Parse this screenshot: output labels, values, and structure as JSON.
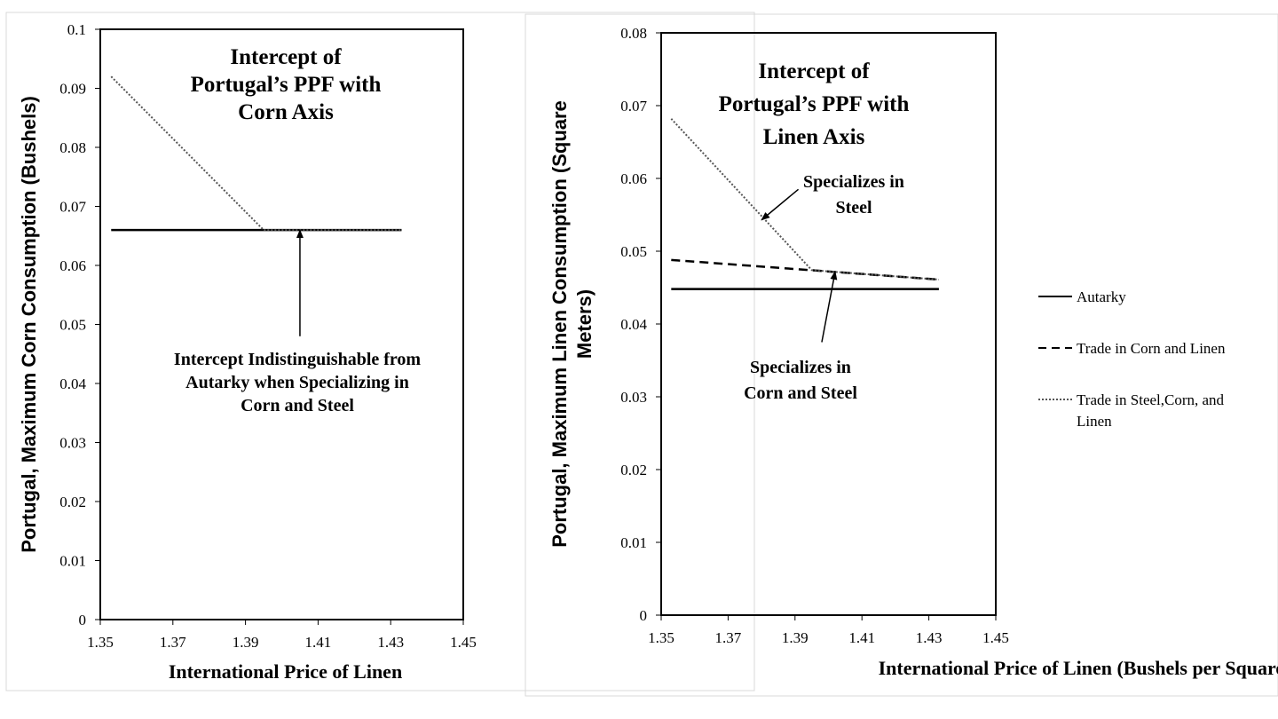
{
  "chart_data": [
    {
      "type": "line",
      "title": "Intercept of Portugal’s PPF with Corn Axis",
      "title_lines": [
        "Intercept of",
        "Portugal’s PPF with",
        "Corn Axis"
      ],
      "xlabel": "International Price of Linen",
      "ylabel": "Portugal, Maximum Corn Consumption (Bushels)",
      "xlim": [
        1.35,
        1.45
      ],
      "ylim": [
        0,
        0.1
      ],
      "x_ticks": [
        "1.35",
        "1.37",
        "1.39",
        "1.41",
        "1.43",
        "1.45"
      ],
      "y_ticks": [
        "0",
        "0.01",
        "0.02",
        "0.03",
        "0.04",
        "0.05",
        "0.06",
        "0.07",
        "0.08",
        "0.09",
        "0.1"
      ],
      "grid": false,
      "series": [
        {
          "name": "Autarky",
          "style": "solid",
          "x": [
            1.353,
            1.433
          ],
          "y": [
            0.066,
            0.066
          ]
        },
        {
          "name": "Trade in Steel,Corn, and Linen",
          "style": "dotted",
          "x": [
            1.353,
            1.395,
            1.433
          ],
          "y": [
            0.092,
            0.066,
            0.066
          ]
        }
      ],
      "annotations": [
        {
          "lines": [
            "Intercept Indistinguishable from",
            "Autarky when Specializing in",
            "Corn and Steel"
          ],
          "arrow_from": [
            1.405,
            0.048
          ],
          "arrow_to": [
            1.405,
            0.066
          ]
        }
      ]
    },
    {
      "type": "line",
      "title": "Intercept of Portugal’s PPF with Linen Axis",
      "title_lines": [
        "Intercept of",
        "Portugal’s PPF with",
        "Linen Axis"
      ],
      "xlabel": "International Price of Linen (Bushels per Square Meter)",
      "ylabel": "Portugal, Maximum Linen Consumption (Square Meters)",
      "ylabel_lines": [
        "Portugal, Maximum Linen Consumption (Square",
        "Meters)"
      ],
      "xlim": [
        1.35,
        1.45
      ],
      "ylim": [
        0,
        0.08
      ],
      "x_ticks": [
        "1.35",
        "1.37",
        "1.39",
        "1.41",
        "1.43",
        "1.45"
      ],
      "y_ticks": [
        "0",
        "0.01",
        "0.02",
        "0.03",
        "0.04",
        "0.05",
        "0.06",
        "0.07",
        "0.08"
      ],
      "grid": false,
      "legend": "right",
      "series": [
        {
          "name": "Autarky",
          "style": "solid",
          "x": [
            1.353,
            1.433
          ],
          "y": [
            0.0448,
            0.0448
          ]
        },
        {
          "name": "Trade in Corn and Linen",
          "style": "dashed",
          "x": [
            1.353,
            1.433
          ],
          "y": [
            0.0488,
            0.0461
          ]
        },
        {
          "name": "Trade in Steel,Corn, and Linen",
          "style": "dotted",
          "x": [
            1.353,
            1.395,
            1.433
          ],
          "y": [
            0.0682,
            0.0474,
            0.0461
          ]
        }
      ],
      "legend_entries": [
        {
          "lines": [
            "Autarky"
          ],
          "style": "solid"
        },
        {
          "lines": [
            "Trade in Corn and Linen"
          ],
          "style": "dashed"
        },
        {
          "lines": [
            "Trade in Steel,Corn, and",
            "Linen"
          ],
          "style": "dotted"
        }
      ],
      "annotations": [
        {
          "lines": [
            "Specializes in",
            "Steel"
          ],
          "arrow_from": [
            1.391,
            0.0585
          ],
          "arrow_to": [
            1.38,
            0.0543
          ]
        },
        {
          "lines": [
            "Specializes in",
            "Corn and Steel"
          ],
          "arrow_from": [
            1.398,
            0.0375
          ],
          "arrow_to": [
            1.402,
            0.0472
          ]
        }
      ]
    }
  ]
}
